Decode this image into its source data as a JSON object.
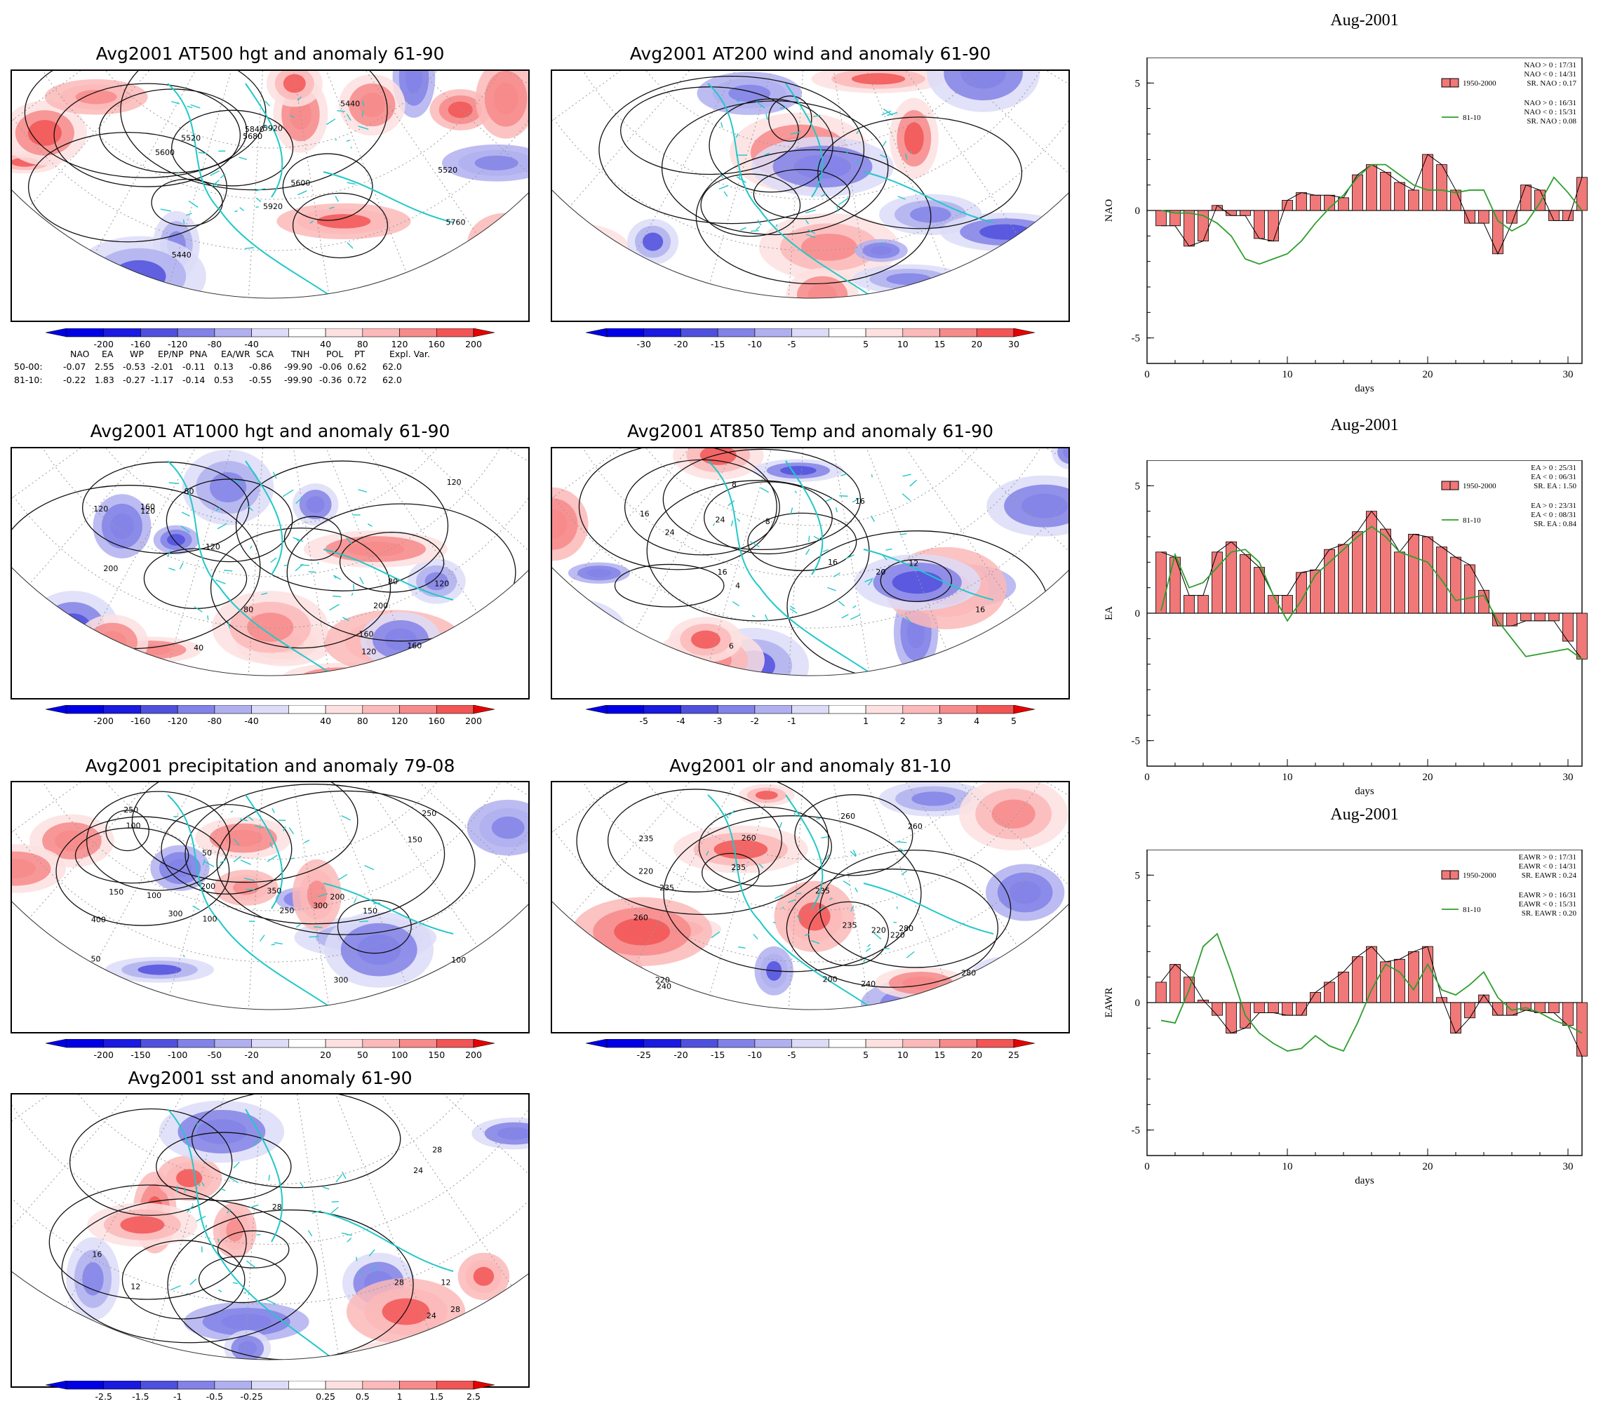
{
  "maps": [
    {
      "id": "at500",
      "title": "Avg2001 AT500 hgt and anomaly 61-90",
      "colorbar": [
        "-200",
        "-160",
        "-120",
        "-80",
        "-40",
        "40",
        "80",
        "120",
        "160",
        "200"
      ],
      "contour_labels": [
        "5520",
        "5440",
        "5440",
        "5520",
        "5600",
        "5680",
        "5760",
        "5840",
        "5920",
        "5920",
        "5600"
      ]
    },
    {
      "id": "at200",
      "title": "Avg2001 AT200 wind and anomaly 61-90",
      "colorbar": [
        "-30",
        "-20",
        "-15",
        "-10",
        "-5",
        "5",
        "10",
        "15",
        "20",
        "30"
      ],
      "contour_labels": []
    },
    {
      "id": "at1000",
      "title": "Avg2001 AT1000 hgt and anomaly 61-90",
      "colorbar": [
        "-200",
        "-160",
        "-120",
        "-80",
        "-40",
        "40",
        "80",
        "120",
        "160",
        "200"
      ],
      "contour_labels": [
        "40",
        "160",
        "80",
        "200",
        "200",
        "120",
        "80",
        "80",
        "120",
        "160",
        "120",
        "120",
        "160",
        "120",
        "120"
      ]
    },
    {
      "id": "at850",
      "title": "Avg2001 AT850 Temp and anomaly 61-90",
      "colorbar": [
        "-5",
        "-4",
        "-3",
        "-2",
        "-1",
        "1",
        "2",
        "3",
        "4",
        "5"
      ],
      "contour_labels": [
        "16",
        "24",
        "4",
        "16",
        "8",
        "12",
        "16",
        "20",
        "24",
        "8",
        "16",
        "16",
        "6"
      ]
    },
    {
      "id": "precip",
      "title": "Avg2001 precipitation and anomaly 79-08",
      "colorbar": [
        "-200",
        "-150",
        "-100",
        "-50",
        "-20",
        "20",
        "50",
        "100",
        "150",
        "200"
      ],
      "contour_labels": [
        "300",
        "150",
        "100",
        "50",
        "250",
        "300",
        "200",
        "250",
        "350",
        "400",
        "100",
        "200",
        "300",
        "150",
        "50",
        "100",
        "150",
        "250",
        "100"
      ]
    },
    {
      "id": "olr",
      "title": "Avg2001 olr and anomaly 81-10",
      "colorbar": [
        "-25",
        "-20",
        "-15",
        "-10",
        "-5",
        "5",
        "10",
        "15",
        "20",
        "25"
      ],
      "contour_labels": [
        "235",
        "260",
        "220",
        "240",
        "260",
        "220",
        "235",
        "235",
        "280",
        "240",
        "260",
        "235",
        "220",
        "260",
        "200",
        "220",
        "235",
        "280"
      ]
    },
    {
      "id": "sst",
      "title": "Avg2001 sst and anomaly 61-90",
      "colorbar": [
        "-2.5",
        "-1.5",
        "-1",
        "-0.5",
        "-0.25",
        "0.25",
        "0.5",
        "1",
        "1.5",
        "2.5"
      ],
      "contour_labels": [
        "28",
        "12",
        "24",
        "28",
        "16",
        "12",
        "28",
        "24",
        "28"
      ]
    }
  ],
  "index_table": {
    "header": [
      "NAO",
      "EA",
      "WP",
      "EP/NP",
      "PNA",
      "EA/WR",
      "SCA",
      "TNH",
      "POL",
      "PT",
      "Expl. Var."
    ],
    "rows": [
      {
        "label": "50-00:",
        "values": [
          "-0.07",
          "2.55",
          "-0.53",
          "-2.01",
          "-0.11",
          "0.13",
          "-0.86",
          "-99.90",
          "-0.06",
          "0.62",
          "62.0"
        ]
      },
      {
        "label": "81-10:",
        "values": [
          "-0.22",
          "1.83",
          "-0.27",
          "-1.17",
          "-0.14",
          "0.53",
          "-0.55",
          "-99.90",
          "-0.36",
          "0.72",
          "62.0"
        ]
      }
    ]
  },
  "colors": {
    "land": "#22c8c8",
    "pos_scale": [
      "#fde0e0",
      "#fbb9b9",
      "#f78a8a",
      "#f25555",
      "#e81c1c",
      "#e60000"
    ],
    "neg_scale": [
      "#dcdcf8",
      "#b0b0f0",
      "#8282e8",
      "#5050de",
      "#1a1ae0",
      "#0000e6"
    ],
    "bar": "#f07878",
    "line": "#2e9e2e"
  },
  "chart_data": [
    {
      "type": "bar",
      "title": "Aug-2001",
      "xlabel": "days",
      "ylabel": "NAO",
      "xlim": [
        0,
        31
      ],
      "ylim": [
        -6,
        6
      ],
      "xticks": [
        "0",
        "10",
        "20",
        "30"
      ],
      "yticks": [
        "5",
        "0",
        "-5"
      ],
      "legend_bar": "1950-2000",
      "legend_line": "81-10",
      "stats_bar": [
        "NAO > 0 : 17/31",
        "NAO < 0 : 14/31",
        "SR. NAO : 0.17"
      ],
      "stats_line": [
        "NAO > 0 : 16/31",
        "NAO < 0 : 15/31",
        "SR. NAO : 0.08"
      ],
      "x": [
        1,
        2,
        3,
        4,
        5,
        6,
        7,
        8,
        9,
        10,
        11,
        12,
        13,
        14,
        15,
        16,
        17,
        18,
        19,
        20,
        21,
        22,
        23,
        24,
        25,
        26,
        27,
        28,
        29,
        30,
        31
      ],
      "series": [
        {
          "name": "1950-2000",
          "type": "bar",
          "values": [
            -0.6,
            -0.6,
            -1.4,
            -1.2,
            0.2,
            -0.2,
            -0.2,
            -1.1,
            -1.2,
            0.4,
            0.7,
            0.6,
            0.6,
            0.5,
            1.4,
            1.8,
            1.5,
            1.1,
            0.8,
            2.2,
            1.8,
            0.8,
            -0.5,
            -0.5,
            -1.7,
            -0.5,
            1.0,
            0.8,
            -0.4,
            -0.4,
            1.3
          ]
        },
        {
          "name": "81-10",
          "type": "line",
          "values": [
            0.0,
            -0.1,
            -0.1,
            -0.2,
            -0.5,
            -1.0,
            -1.9,
            -2.1,
            -1.9,
            -1.7,
            -1.2,
            -0.5,
            0.1,
            0.6,
            1.3,
            1.8,
            1.8,
            1.4,
            1.0,
            0.8,
            0.8,
            0.7,
            0.8,
            0.8,
            -0.4,
            -0.8,
            -0.5,
            0.3,
            1.3,
            0.7,
            0.0
          ]
        }
      ]
    },
    {
      "type": "bar",
      "title": "Aug-2001",
      "xlabel": "days",
      "ylabel": "EA",
      "xlim": [
        0,
        31
      ],
      "ylim": [
        -6,
        6
      ],
      "xticks": [
        "0",
        "10",
        "20",
        "30"
      ],
      "yticks": [
        "5",
        "0",
        "-5"
      ],
      "legend_bar": "1950-2000",
      "legend_line": "81-10",
      "stats_bar": [
        "EA > 0 : 25/31",
        "EA < 0 : 06/31",
        "SR. EA : 1.50"
      ],
      "stats_line": [
        "EA > 0 : 23/31",
        "EA < 0 : 08/31",
        "SR. EA : 0.84"
      ],
      "x": [
        1,
        2,
        3,
        4,
        5,
        6,
        7,
        8,
        9,
        10,
        11,
        12,
        13,
        14,
        15,
        16,
        17,
        18,
        19,
        20,
        21,
        22,
        23,
        24,
        25,
        26,
        27,
        28,
        29,
        30,
        31
      ],
      "series": [
        {
          "name": "1950-2000",
          "type": "bar",
          "values": [
            2.4,
            2.2,
            0.7,
            0.7,
            2.4,
            2.8,
            2.3,
            1.8,
            0.7,
            0.7,
            1.6,
            1.7,
            2.5,
            2.7,
            3.2,
            4.0,
            3.3,
            2.4,
            3.1,
            3.0,
            2.6,
            2.2,
            1.9,
            0.9,
            -0.5,
            -0.5,
            -0.3,
            -0.3,
            -0.3,
            -1.1,
            -1.8
          ]
        },
        {
          "name": "81-10",
          "type": "line",
          "values": [
            0.1,
            2.3,
            1.0,
            1.2,
            1.8,
            2.4,
            2.5,
            2.0,
            0.7,
            -0.3,
            0.5,
            1.5,
            2.0,
            2.5,
            3.0,
            3.4,
            3.0,
            2.4,
            2.2,
            2.0,
            1.3,
            0.5,
            0.6,
            0.7,
            -0.3,
            -1.0,
            -1.7,
            -1.6,
            -1.5,
            -1.4,
            -1.8
          ]
        }
      ]
    },
    {
      "type": "bar",
      "title": "Aug-2001",
      "xlabel": "days",
      "ylabel": "EAWR",
      "xlim": [
        0,
        31
      ],
      "ylim": [
        -6,
        6
      ],
      "xticks": [
        "0",
        "10",
        "20",
        "30"
      ],
      "yticks": [
        "5",
        "0",
        "-5"
      ],
      "legend_bar": "1950-2000",
      "legend_line": "81-10",
      "stats_bar": [
        "EAWR > 0 : 17/31",
        "EAWR < 0 : 14/31",
        "SR. EAWR : 0.24"
      ],
      "stats_line": [
        "EAWR > 0 : 16/31",
        "EAWR < 0 : 15/31",
        "SR. EAWR : 0.20"
      ],
      "x": [
        1,
        2,
        3,
        4,
        5,
        6,
        7,
        8,
        9,
        10,
        11,
        12,
        13,
        14,
        15,
        16,
        17,
        18,
        19,
        20,
        21,
        22,
        23,
        24,
        25,
        26,
        27,
        28,
        29,
        30,
        31
      ],
      "series": [
        {
          "name": "1950-2000",
          "type": "bar",
          "values": [
            0.8,
            1.5,
            1.0,
            0.1,
            -0.5,
            -1.2,
            -1.0,
            -0.4,
            -0.4,
            -0.5,
            -0.5,
            0.4,
            0.8,
            1.2,
            1.8,
            2.2,
            1.6,
            1.7,
            2.0,
            2.2,
            0.2,
            -1.2,
            -0.6,
            0.3,
            -0.5,
            -0.5,
            -0.3,
            -0.4,
            -0.4,
            -0.9,
            -2.1
          ]
        },
        {
          "name": "81-10",
          "type": "line",
          "values": [
            -0.7,
            -0.8,
            0.5,
            2.2,
            2.7,
            1.2,
            -0.5,
            -1.2,
            -1.6,
            -1.9,
            -1.8,
            -1.3,
            -1.7,
            -1.9,
            -0.8,
            0.5,
            1.5,
            1.2,
            0.5,
            1.5,
            0.5,
            0.3,
            0.7,
            1.2,
            0.2,
            -0.3,
            -0.2,
            -0.4,
            -0.7,
            -0.9,
            -1.2
          ]
        }
      ]
    }
  ]
}
